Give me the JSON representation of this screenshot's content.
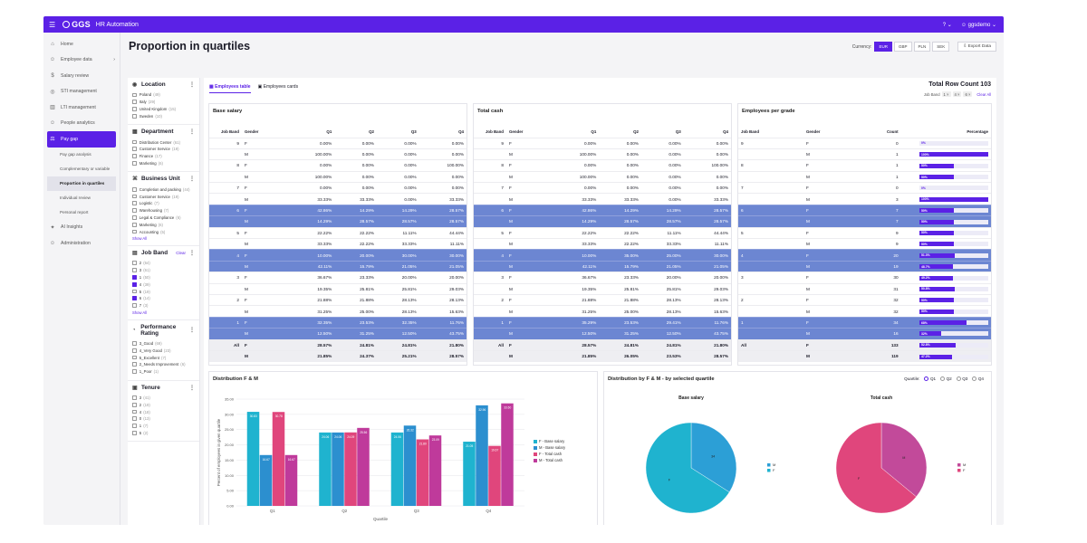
{
  "topbar": {
    "logo": "GGS",
    "app_name": "HR Automation",
    "help": "?",
    "user": "ggsdemo"
  },
  "sidebar": {
    "items": [
      {
        "label": "Home",
        "icon": "home-icon",
        "glyph": "⌂"
      },
      {
        "label": "Employee data",
        "icon": "people-icon",
        "glyph": "☺"
      },
      {
        "label": "Salary review",
        "icon": "salary-icon",
        "glyph": "$"
      },
      {
        "label": "STI management",
        "icon": "target-icon",
        "glyph": "◎"
      },
      {
        "label": "LTI management",
        "icon": "chart-icon",
        "glyph": "▥"
      },
      {
        "label": "People analytics",
        "icon": "analytics-icon",
        "glyph": "☺"
      },
      {
        "label": "Pay gap",
        "icon": "paygap-icon",
        "glyph": "⚖"
      }
    ],
    "pay_gap_sub": [
      "Pay gap analysis",
      "Complementary or variable",
      "Proportion in quartiles",
      "Individual review",
      "Personal report"
    ],
    "items_after": [
      {
        "label": "AI Insights",
        "icon": "ai-icon",
        "glyph": "✦"
      },
      {
        "label": "Administration",
        "icon": "admin-icon",
        "glyph": "☺"
      }
    ]
  },
  "page": {
    "title": "Proportion in quartiles",
    "currency_label": "Currency:",
    "currencies": [
      "EUR",
      "GBP",
      "PLN",
      "SEK"
    ],
    "selected_currency": "EUR",
    "export_label": "Export Data"
  },
  "filters": {
    "location": {
      "title": "Location",
      "items": [
        {
          "label": "Poland",
          "count": "(49)"
        },
        {
          "label": "Italy",
          "count": "(29)"
        },
        {
          "label": "United Kingdom",
          "count": "(15)"
        },
        {
          "label": "Sweden",
          "count": "(10)"
        }
      ]
    },
    "department": {
      "title": "Department",
      "items": [
        {
          "label": "Distribution Center",
          "count": "(61)"
        },
        {
          "label": "Customer Service",
          "count": "(19)"
        },
        {
          "label": "Finance",
          "count": "(17)"
        },
        {
          "label": "Marketing",
          "count": "(6)"
        }
      ]
    },
    "business_unit": {
      "title": "Business Unit",
      "items": [
        {
          "label": "Completion and packing",
          "count": "(44)"
        },
        {
          "label": "Customer Service",
          "count": "(19)"
        },
        {
          "label": "Logistic",
          "count": "(7)"
        },
        {
          "label": "Warehousing",
          "count": "(7)"
        },
        {
          "label": "Legal & Compliance",
          "count": "(6)"
        },
        {
          "label": "Marketing",
          "count": "(6)"
        },
        {
          "label": "Accounting",
          "count": "(5)"
        }
      ],
      "show_all": "Show All"
    },
    "job_band": {
      "title": "Job Band",
      "clear": "Clear",
      "items": [
        {
          "label": "2",
          "count": "(64)",
          "checked": false
        },
        {
          "label": "3",
          "count": "(61)",
          "checked": false
        },
        {
          "label": "1",
          "count": "(50)",
          "checked": true
        },
        {
          "label": "4",
          "count": "(39)",
          "checked": true
        },
        {
          "label": "5",
          "count": "(19)",
          "checked": false
        },
        {
          "label": "6",
          "count": "(14)",
          "checked": true
        },
        {
          "label": "7",
          "count": "(3)",
          "checked": false
        }
      ],
      "show_all": "Show All"
    },
    "performance": {
      "title": "Performance Rating",
      "items": [
        {
          "label": "3_Good",
          "count": "(69)"
        },
        {
          "label": "4_Very Good",
          "count": "(23)"
        },
        {
          "label": "5_Excellent",
          "count": "(7)"
        },
        {
          "label": "2_Needs Improvement",
          "count": "(6)"
        },
        {
          "label": "1_Poor",
          "count": "(1)"
        }
      ]
    },
    "tenure": {
      "title": "Tenure",
      "items": [
        {
          "label": "3",
          "count": "(41)"
        },
        {
          "label": "2",
          "count": "(19)"
        },
        {
          "label": "4",
          "count": "(18)"
        },
        {
          "label": "0",
          "count": "(13)"
        },
        {
          "label": "1",
          "count": "(7)"
        },
        {
          "label": "5",
          "count": "(2)"
        }
      ]
    }
  },
  "view_tabs": [
    "Employees table",
    "Employees cards"
  ],
  "total_row_count": "Total Row Count 103",
  "job_band_chips": {
    "label": "Job Band",
    "chips": [
      "1",
      "4",
      "6"
    ],
    "clear_all": "Clear All"
  },
  "tables": {
    "columns": [
      "Job Band",
      "Gender",
      "Q1",
      "Q2",
      "Q3",
      "Q4"
    ],
    "base_salary": {
      "title": "Base salary",
      "rows": [
        [
          "9",
          "F",
          "0.00%",
          "0.00%",
          "0.00%",
          "0.00%"
        ],
        [
          "",
          "M",
          "100.00%",
          "0.00%",
          "0.00%",
          "0.00%"
        ],
        [
          "8",
          "F",
          "0.00%",
          "0.00%",
          "0.00%",
          "100.00%"
        ],
        [
          "",
          "M",
          "100.00%",
          "0.00%",
          "0.00%",
          "0.00%"
        ],
        [
          "7",
          "F",
          "0.00%",
          "0.00%",
          "0.00%",
          "0.00%"
        ],
        [
          "",
          "M",
          "33.33%",
          "33.33%",
          "0.00%",
          "33.33%"
        ],
        [
          "6",
          "F",
          "42.86%",
          "14.29%",
          "14.29%",
          "28.57%"
        ],
        [
          "",
          "M",
          "14.29%",
          "28.57%",
          "28.57%",
          "28.57%"
        ],
        [
          "5",
          "F",
          "22.22%",
          "22.22%",
          "11.11%",
          "44.44%"
        ],
        [
          "",
          "M",
          "33.33%",
          "22.22%",
          "33.33%",
          "11.11%"
        ],
        [
          "4",
          "F",
          "10.00%",
          "20.00%",
          "30.00%",
          "30.00%"
        ],
        [
          "",
          "M",
          "42.11%",
          "15.79%",
          "21.05%",
          "21.05%"
        ],
        [
          "3",
          "F",
          "36.67%",
          "23.33%",
          "20.00%",
          "20.00%"
        ],
        [
          "",
          "M",
          "19.35%",
          "25.81%",
          "25.81%",
          "29.03%"
        ],
        [
          "2",
          "F",
          "21.88%",
          "21.88%",
          "28.13%",
          "28.13%"
        ],
        [
          "",
          "M",
          "31.25%",
          "25.00%",
          "28.13%",
          "15.63%"
        ],
        [
          "1",
          "F",
          "32.35%",
          "23.53%",
          "32.35%",
          "11.76%"
        ],
        [
          "",
          "M",
          "12.50%",
          "31.25%",
          "12.50%",
          "43.75%"
        ],
        [
          "All",
          "F",
          "28.57%",
          "24.81%",
          "24.81%",
          "21.80%"
        ],
        [
          "",
          "M",
          "21.85%",
          "24.37%",
          "25.21%",
          "28.57%"
        ]
      ]
    },
    "total_cash": {
      "title": "Total cash",
      "rows": [
        [
          "9",
          "F",
          "0.00%",
          "0.00%",
          "0.00%",
          "0.00%"
        ],
        [
          "",
          "M",
          "100.00%",
          "0.00%",
          "0.00%",
          "0.00%"
        ],
        [
          "8",
          "F",
          "0.00%",
          "0.00%",
          "0.00%",
          "100.00%"
        ],
        [
          "",
          "M",
          "100.00%",
          "0.00%",
          "0.00%",
          "0.00%"
        ],
        [
          "7",
          "F",
          "0.00%",
          "0.00%",
          "0.00%",
          "0.00%"
        ],
        [
          "",
          "M",
          "33.33%",
          "33.33%",
          "0.00%",
          "33.33%"
        ],
        [
          "6",
          "F",
          "42.86%",
          "14.29%",
          "14.29%",
          "28.57%"
        ],
        [
          "",
          "M",
          "14.29%",
          "28.57%",
          "28.57%",
          "28.57%"
        ],
        [
          "5",
          "F",
          "22.22%",
          "22.22%",
          "11.11%",
          "44.44%"
        ],
        [
          "",
          "M",
          "33.33%",
          "22.22%",
          "33.33%",
          "11.11%"
        ],
        [
          "4",
          "F",
          "10.00%",
          "35.00%",
          "25.00%",
          "30.00%"
        ],
        [
          "",
          "M",
          "42.11%",
          "15.79%",
          "21.05%",
          "21.05%"
        ],
        [
          "3",
          "F",
          "36.67%",
          "23.33%",
          "20.00%",
          "20.00%"
        ],
        [
          "",
          "M",
          "19.35%",
          "25.81%",
          "25.81%",
          "29.03%"
        ],
        [
          "2",
          "F",
          "21.88%",
          "21.88%",
          "28.13%",
          "28.13%"
        ],
        [
          "",
          "M",
          "31.25%",
          "25.00%",
          "28.13%",
          "15.63%"
        ],
        [
          "1",
          "F",
          "35.29%",
          "23.53%",
          "29.41%",
          "11.76%"
        ],
        [
          "",
          "M",
          "12.50%",
          "31.25%",
          "12.50%",
          "43.75%"
        ],
        [
          "All",
          "F",
          "28.57%",
          "24.81%",
          "24.81%",
          "21.80%"
        ],
        [
          "",
          "M",
          "21.85%",
          "26.05%",
          "23.53%",
          "28.57%"
        ]
      ]
    },
    "per_grade": {
      "title": "Employees per grade",
      "columns": [
        "Job Band",
        "Gender",
        "Count",
        "Percentage"
      ],
      "rows": [
        [
          "9",
          "F",
          "0",
          "0%",
          0
        ],
        [
          "",
          "M",
          "1",
          "100%",
          100
        ],
        [
          "8",
          "F",
          "1",
          "50%",
          50
        ],
        [
          "",
          "M",
          "1",
          "50%",
          50
        ],
        [
          "7",
          "F",
          "0",
          "0%",
          0
        ],
        [
          "",
          "M",
          "3",
          "100%",
          100
        ],
        [
          "6",
          "F",
          "7",
          "50%",
          50
        ],
        [
          "",
          "M",
          "7",
          "50%",
          50
        ],
        [
          "5",
          "F",
          "9",
          "50%",
          50
        ],
        [
          "",
          "M",
          "9",
          "50%",
          50
        ],
        [
          "4",
          "F",
          "20",
          "51.3%",
          51.3
        ],
        [
          "",
          "M",
          "19",
          "48.7%",
          48.7
        ],
        [
          "3",
          "F",
          "30",
          "49.2%",
          49.2
        ],
        [
          "",
          "M",
          "31",
          "50.8%",
          50.8
        ],
        [
          "2",
          "F",
          "32",
          "50%",
          50
        ],
        [
          "",
          "M",
          "32",
          "50%",
          50
        ],
        [
          "1",
          "F",
          "34",
          "68%",
          68
        ],
        [
          "",
          "M",
          "16",
          "32%",
          32
        ],
        [
          "All",
          "F",
          "133",
          "52.8%",
          52.8
        ],
        [
          "",
          "M",
          "119",
          "47.2%",
          47.2
        ]
      ]
    }
  },
  "bar_chart": {
    "title": "Distribution F & M",
    "type": "bar",
    "ylabel": "Percent of employees in given quartile",
    "xlabel": "Quartile",
    "categories": [
      "Q1",
      "Q2",
      "Q3",
      "Q4"
    ],
    "yticks": [
      "0.00",
      "5.00",
      "10.00",
      "15.00",
      "20.00",
      "25.00",
      "30.00",
      "35.00"
    ],
    "ylim": [
      0,
      35
    ],
    "series": [
      {
        "name": "F - Base salary",
        "color": "#1fb3cf",
        "values": [
          30.83,
          24.06,
          24.06,
          21.05
        ]
      },
      {
        "name": "M - Base salary",
        "color": "#2c8fcf",
        "values": [
          16.67,
          24.06,
          26.32,
          32.96
        ]
      },
      {
        "name": "F - Total cash",
        "color": "#e0467c",
        "values": [
          30.78,
          24.09,
          21.8,
          19.67
        ]
      },
      {
        "name": "M - Total cash",
        "color": "#bf3a9b",
        "values": [
          16.67,
          25.56,
          23.09,
          33.6
        ]
      }
    ],
    "labels": [
      [
        "30.83",
        "16.67",
        "30.78",
        "16.67"
      ],
      [
        "24.06",
        "24.06",
        "24.09",
        "25.56"
      ],
      [
        "24.06",
        "26.32",
        "21.80",
        "23.09"
      ],
      [
        "21.05",
        "32.96",
        "19.67",
        "33.60"
      ]
    ]
  },
  "pie_panel": {
    "title": "Distribution by F & M - by selected quartile",
    "quartile_label": "Quartile:",
    "options": [
      "Q1",
      "Q2",
      "Q3",
      "Q4"
    ],
    "selected": "Q1",
    "pies": [
      {
        "title": "Base salary",
        "type": "pie",
        "slices": [
          {
            "label": "M",
            "value": 34,
            "color": "#2c9fd6"
          },
          {
            "label": "F",
            "value": 66,
            "color": "#1fb3cf"
          }
        ],
        "slice_labels": [
          "34",
          "F"
        ],
        "legend": [
          "M",
          "F"
        ]
      },
      {
        "title": "Total cash",
        "type": "pie",
        "slices": [
          {
            "label": "M",
            "value": 36,
            "color": "#c24a9a"
          },
          {
            "label": "F",
            "value": 64,
            "color": "#e0467c"
          }
        ],
        "slice_labels": [
          "M",
          "F"
        ],
        "legend": [
          "M",
          "F"
        ]
      }
    ]
  }
}
